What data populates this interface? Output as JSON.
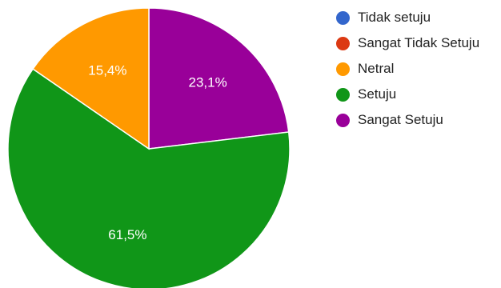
{
  "chart_data": {
    "type": "pie",
    "categories": [
      "Tidak setuju",
      "Sangat Tidak Setuju",
      "Netral",
      "Setuju",
      "Sangat Setuju"
    ],
    "values": [
      0,
      0,
      15.4,
      61.5,
      23.1
    ],
    "value_labels": [
      "",
      "",
      "15,4%",
      "61,5%",
      "23,1%"
    ],
    "colors": [
      "#3366cc",
      "#dc3912",
      "#ff9900",
      "#109618",
      "#990099"
    ],
    "legend_position": "right"
  }
}
